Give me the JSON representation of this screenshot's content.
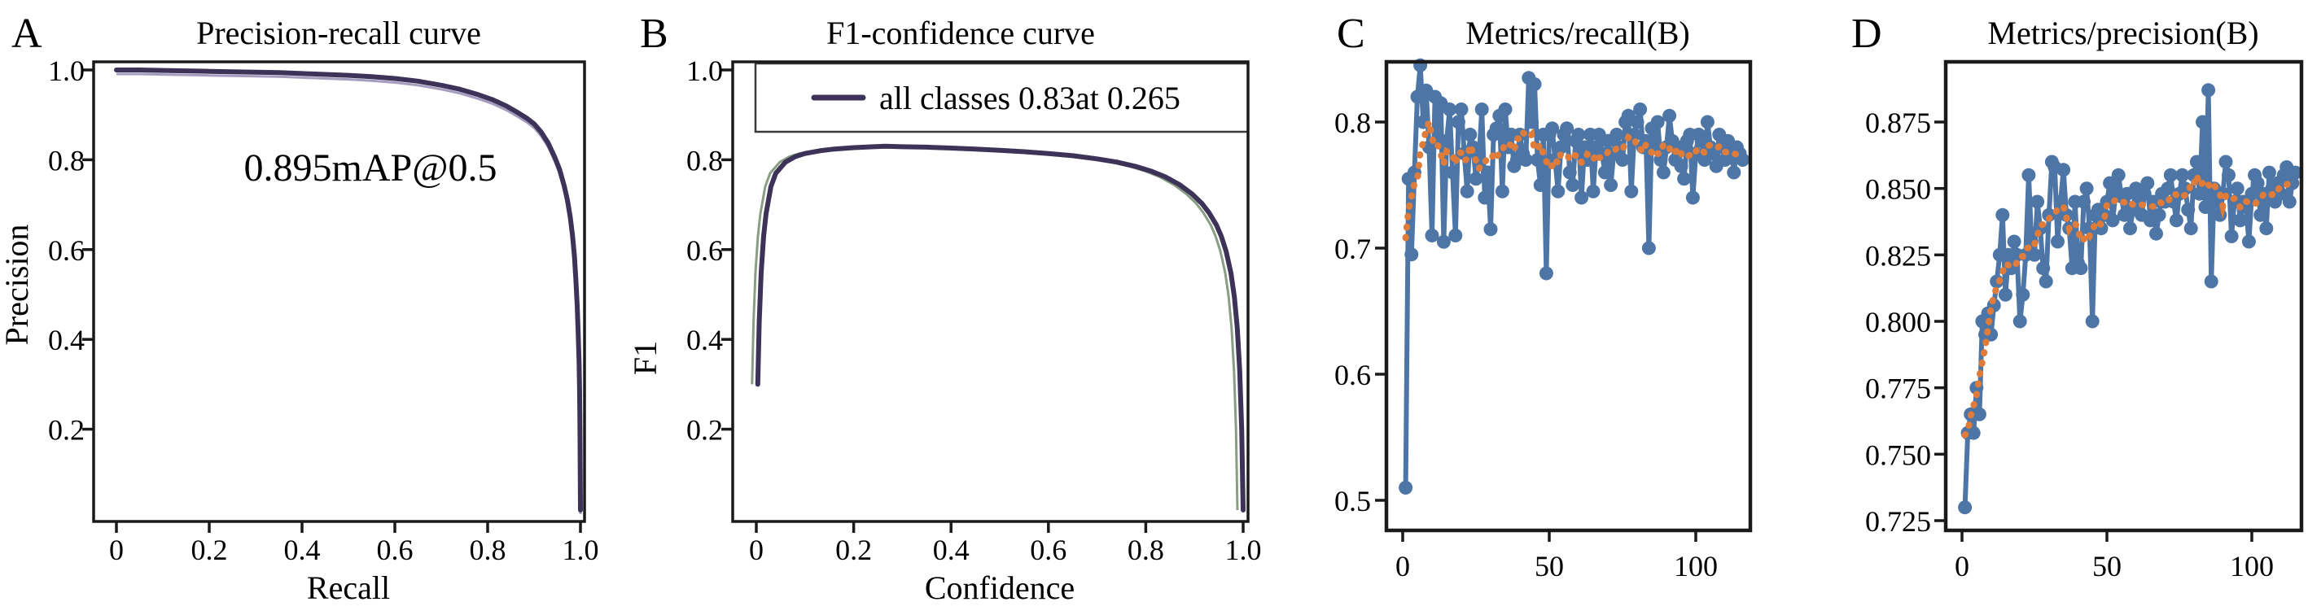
{
  "figure": {
    "background": "#ffffff",
    "spine_color": "#1a1a1a",
    "text_color": "#000000"
  },
  "chart_data": [
    {
      "type": "line",
      "letter": "A",
      "title": "Precision-recall curve",
      "xlabel": "Recall",
      "ylabel": "Precision",
      "annotation": "0.895mAP@0.5",
      "xlim": [
        0,
        1.0
      ],
      "ylim": [
        0,
        1.0
      ],
      "x_tick_labels": [
        "0",
        "0.2",
        "0.4",
        "0.6",
        "0.8",
        "1.0"
      ],
      "x_tick_values": [
        0,
        0.2,
        0.4,
        0.6,
        0.8,
        1.0
      ],
      "y_tick_labels": [
        "0.2",
        "0.4",
        "0.6",
        "0.8",
        "1.0"
      ],
      "y_tick_values": [
        0.2,
        0.4,
        0.6,
        0.8,
        1.0
      ],
      "grid": false,
      "line_color": "#3d3358",
      "shadow_color": "#9a92b8",
      "series": [
        {
          "name": "all classes",
          "x": [
            0,
            0.05,
            0.1,
            0.15,
            0.2,
            0.25,
            0.3,
            0.35,
            0.4,
            0.45,
            0.5,
            0.55,
            0.6,
            0.65,
            0.7,
            0.74,
            0.78,
            0.81,
            0.84,
            0.865,
            0.885,
            0.9,
            0.915,
            0.93,
            0.945,
            0.955,
            0.965,
            0.972,
            0.978,
            0.983,
            0.987,
            0.99,
            0.993,
            0.995,
            0.997,
            0.998,
            0.999,
            1.0
          ],
          "y": [
            1.0,
            1.0,
            0.999,
            0.998,
            0.997,
            0.996,
            0.995,
            0.994,
            0.992,
            0.99,
            0.988,
            0.985,
            0.981,
            0.975,
            0.966,
            0.957,
            0.945,
            0.934,
            0.92,
            0.905,
            0.892,
            0.88,
            0.862,
            0.838,
            0.805,
            0.778,
            0.742,
            0.71,
            0.672,
            0.63,
            0.585,
            0.535,
            0.475,
            0.42,
            0.35,
            0.29,
            0.2,
            0.02
          ]
        }
      ]
    },
    {
      "type": "line",
      "letter": "B",
      "title": "F1-confidence curve",
      "xlabel": "Confidence",
      "ylabel": "F1",
      "legend_label": "all classes 0.83at 0.265",
      "legend_position": "upper center inside, attached to top spine",
      "xlim": [
        0,
        1.0
      ],
      "ylim": [
        0,
        1.0
      ],
      "x_tick_labels": [
        "0",
        "0.2",
        "0.4",
        "0.6",
        "0.8",
        "1.0"
      ],
      "x_tick_values": [
        0,
        0.2,
        0.4,
        0.6,
        0.8,
        1.0
      ],
      "y_tick_labels": [
        "0.2",
        "0.4",
        "0.6",
        "0.8",
        "1.0"
      ],
      "y_tick_values": [
        0.2,
        0.4,
        0.6,
        0.8,
        1.0
      ],
      "grid": false,
      "line_color": "#3d3358",
      "shadow_color": "#7b9277",
      "f1_peak": 0.83,
      "f1_peak_confidence": 0.265,
      "series": [
        {
          "name": "all classes",
          "x": [
            0.003,
            0.006,
            0.01,
            0.015,
            0.02,
            0.03,
            0.04,
            0.06,
            0.08,
            0.1,
            0.13,
            0.16,
            0.2,
            0.24,
            0.265,
            0.3,
            0.35,
            0.4,
            0.45,
            0.5,
            0.55,
            0.6,
            0.65,
            0.7,
            0.74,
            0.78,
            0.81,
            0.84,
            0.87,
            0.895,
            0.915,
            0.93,
            0.945,
            0.955,
            0.965,
            0.975,
            0.982,
            0.988,
            0.993,
            0.997,
            1.0
          ],
          "y": [
            0.3,
            0.44,
            0.55,
            0.63,
            0.68,
            0.74,
            0.77,
            0.795,
            0.807,
            0.814,
            0.82,
            0.824,
            0.827,
            0.829,
            0.83,
            0.829,
            0.828,
            0.826,
            0.824,
            0.821,
            0.818,
            0.814,
            0.809,
            0.802,
            0.795,
            0.785,
            0.775,
            0.762,
            0.744,
            0.724,
            0.703,
            0.682,
            0.655,
            0.63,
            0.596,
            0.548,
            0.495,
            0.425,
            0.33,
            0.2,
            0.02
          ]
        }
      ]
    },
    {
      "type": "scatter",
      "letter": "C",
      "title": "Metrics/recall(B)",
      "xlabel": "",
      "ylabel": "",
      "x_description": "epoch, first point at 1, one point per epoch",
      "x_first": 1,
      "xlim": [
        -5,
        119
      ],
      "ylim": [
        0.48,
        0.85
      ],
      "x_tick_labels": [
        "0",
        "50",
        "100"
      ],
      "x_tick_values": [
        0,
        50,
        100
      ],
      "y_tick_labels": [
        "0.5",
        "0.6",
        "0.7",
        "0.8"
      ],
      "y_tick_values": [
        0.5,
        0.6,
        0.7,
        0.8
      ],
      "grid": false,
      "point_color": "#4d76a6",
      "trend_color": "#e07c3a",
      "trend": "dotted moving-average smoothing",
      "values": [
        0.51,
        0.755,
        0.695,
        0.76,
        0.82,
        0.845,
        0.8,
        0.825,
        0.78,
        0.71,
        0.82,
        0.785,
        0.815,
        0.705,
        0.785,
        0.81,
        0.76,
        0.71,
        0.8,
        0.81,
        0.775,
        0.745,
        0.79,
        0.78,
        0.755,
        0.77,
        0.81,
        0.74,
        0.76,
        0.715,
        0.79,
        0.795,
        0.805,
        0.745,
        0.81,
        0.78,
        0.79,
        0.765,
        0.77,
        0.79,
        0.775,
        0.77,
        0.835,
        0.8,
        0.83,
        0.77,
        0.75,
        0.79,
        0.68,
        0.79,
        0.795,
        0.77,
        0.745,
        0.78,
        0.79,
        0.795,
        0.76,
        0.75,
        0.785,
        0.79,
        0.74,
        0.78,
        0.77,
        0.79,
        0.745,
        0.78,
        0.79,
        0.775,
        0.76,
        0.785,
        0.75,
        0.775,
        0.79,
        0.78,
        0.77,
        0.8,
        0.805,
        0.745,
        0.79,
        0.8,
        0.81,
        0.78,
        0.785,
        0.7,
        0.795,
        0.78,
        0.8,
        0.77,
        0.76,
        0.78,
        0.805,
        0.785,
        0.77,
        0.78,
        0.765,
        0.755,
        0.785,
        0.79,
        0.74,
        0.775,
        0.79,
        0.785,
        0.77,
        0.8,
        0.78,
        0.775,
        0.765,
        0.79,
        0.78,
        0.77,
        0.785,
        0.78,
        0.76,
        0.78,
        0.775,
        0.77
      ]
    },
    {
      "type": "scatter",
      "letter": "D",
      "title": "Metrics/precision(B)",
      "xlabel": "",
      "ylabel": "",
      "x_description": "epoch, first point at 1, one point per epoch",
      "x_first": 1,
      "xlim": [
        -5,
        119
      ],
      "ylim": [
        0.72,
        0.897
      ],
      "x_tick_labels": [
        "0",
        "50",
        "100"
      ],
      "x_tick_values": [
        0,
        50,
        100
      ],
      "y_tick_labels": [
        "0.725",
        "0.750",
        "0.775",
        "0.800",
        "0.825",
        "0.850",
        "0.875"
      ],
      "y_tick_values": [
        0.725,
        0.75,
        0.775,
        0.8,
        0.825,
        0.85,
        0.875
      ],
      "grid": false,
      "point_color": "#4d76a6",
      "trend_color": "#e07c3a",
      "trend": "dotted moving-average smoothing",
      "values": [
        0.73,
        0.758,
        0.765,
        0.758,
        0.775,
        0.765,
        0.8,
        0.795,
        0.803,
        0.795,
        0.806,
        0.815,
        0.825,
        0.84,
        0.81,
        0.825,
        0.82,
        0.83,
        0.825,
        0.8,
        0.81,
        0.825,
        0.855,
        0.83,
        0.825,
        0.845,
        0.835,
        0.82,
        0.815,
        0.84,
        0.86,
        0.858,
        0.83,
        0.845,
        0.857,
        0.84,
        0.835,
        0.82,
        0.845,
        0.822,
        0.82,
        0.845,
        0.85,
        0.835,
        0.8,
        0.84,
        0.842,
        0.835,
        0.84,
        0.845,
        0.852,
        0.838,
        0.848,
        0.855,
        0.847,
        0.84,
        0.848,
        0.835,
        0.842,
        0.85,
        0.845,
        0.84,
        0.848,
        0.852,
        0.838,
        0.845,
        0.833,
        0.84,
        0.848,
        0.845,
        0.85,
        0.855,
        0.845,
        0.838,
        0.848,
        0.855,
        0.85,
        0.842,
        0.835,
        0.855,
        0.86,
        0.848,
        0.875,
        0.843,
        0.887,
        0.815,
        0.85,
        0.845,
        0.84,
        0.848,
        0.86,
        0.855,
        0.832,
        0.845,
        0.85,
        0.838,
        0.845,
        0.843,
        0.83,
        0.848,
        0.855,
        0.852,
        0.84,
        0.848,
        0.835,
        0.856,
        0.85,
        0.845,
        0.852,
        0.848,
        0.855,
        0.858,
        0.845,
        0.852,
        0.856
      ]
    }
  ]
}
